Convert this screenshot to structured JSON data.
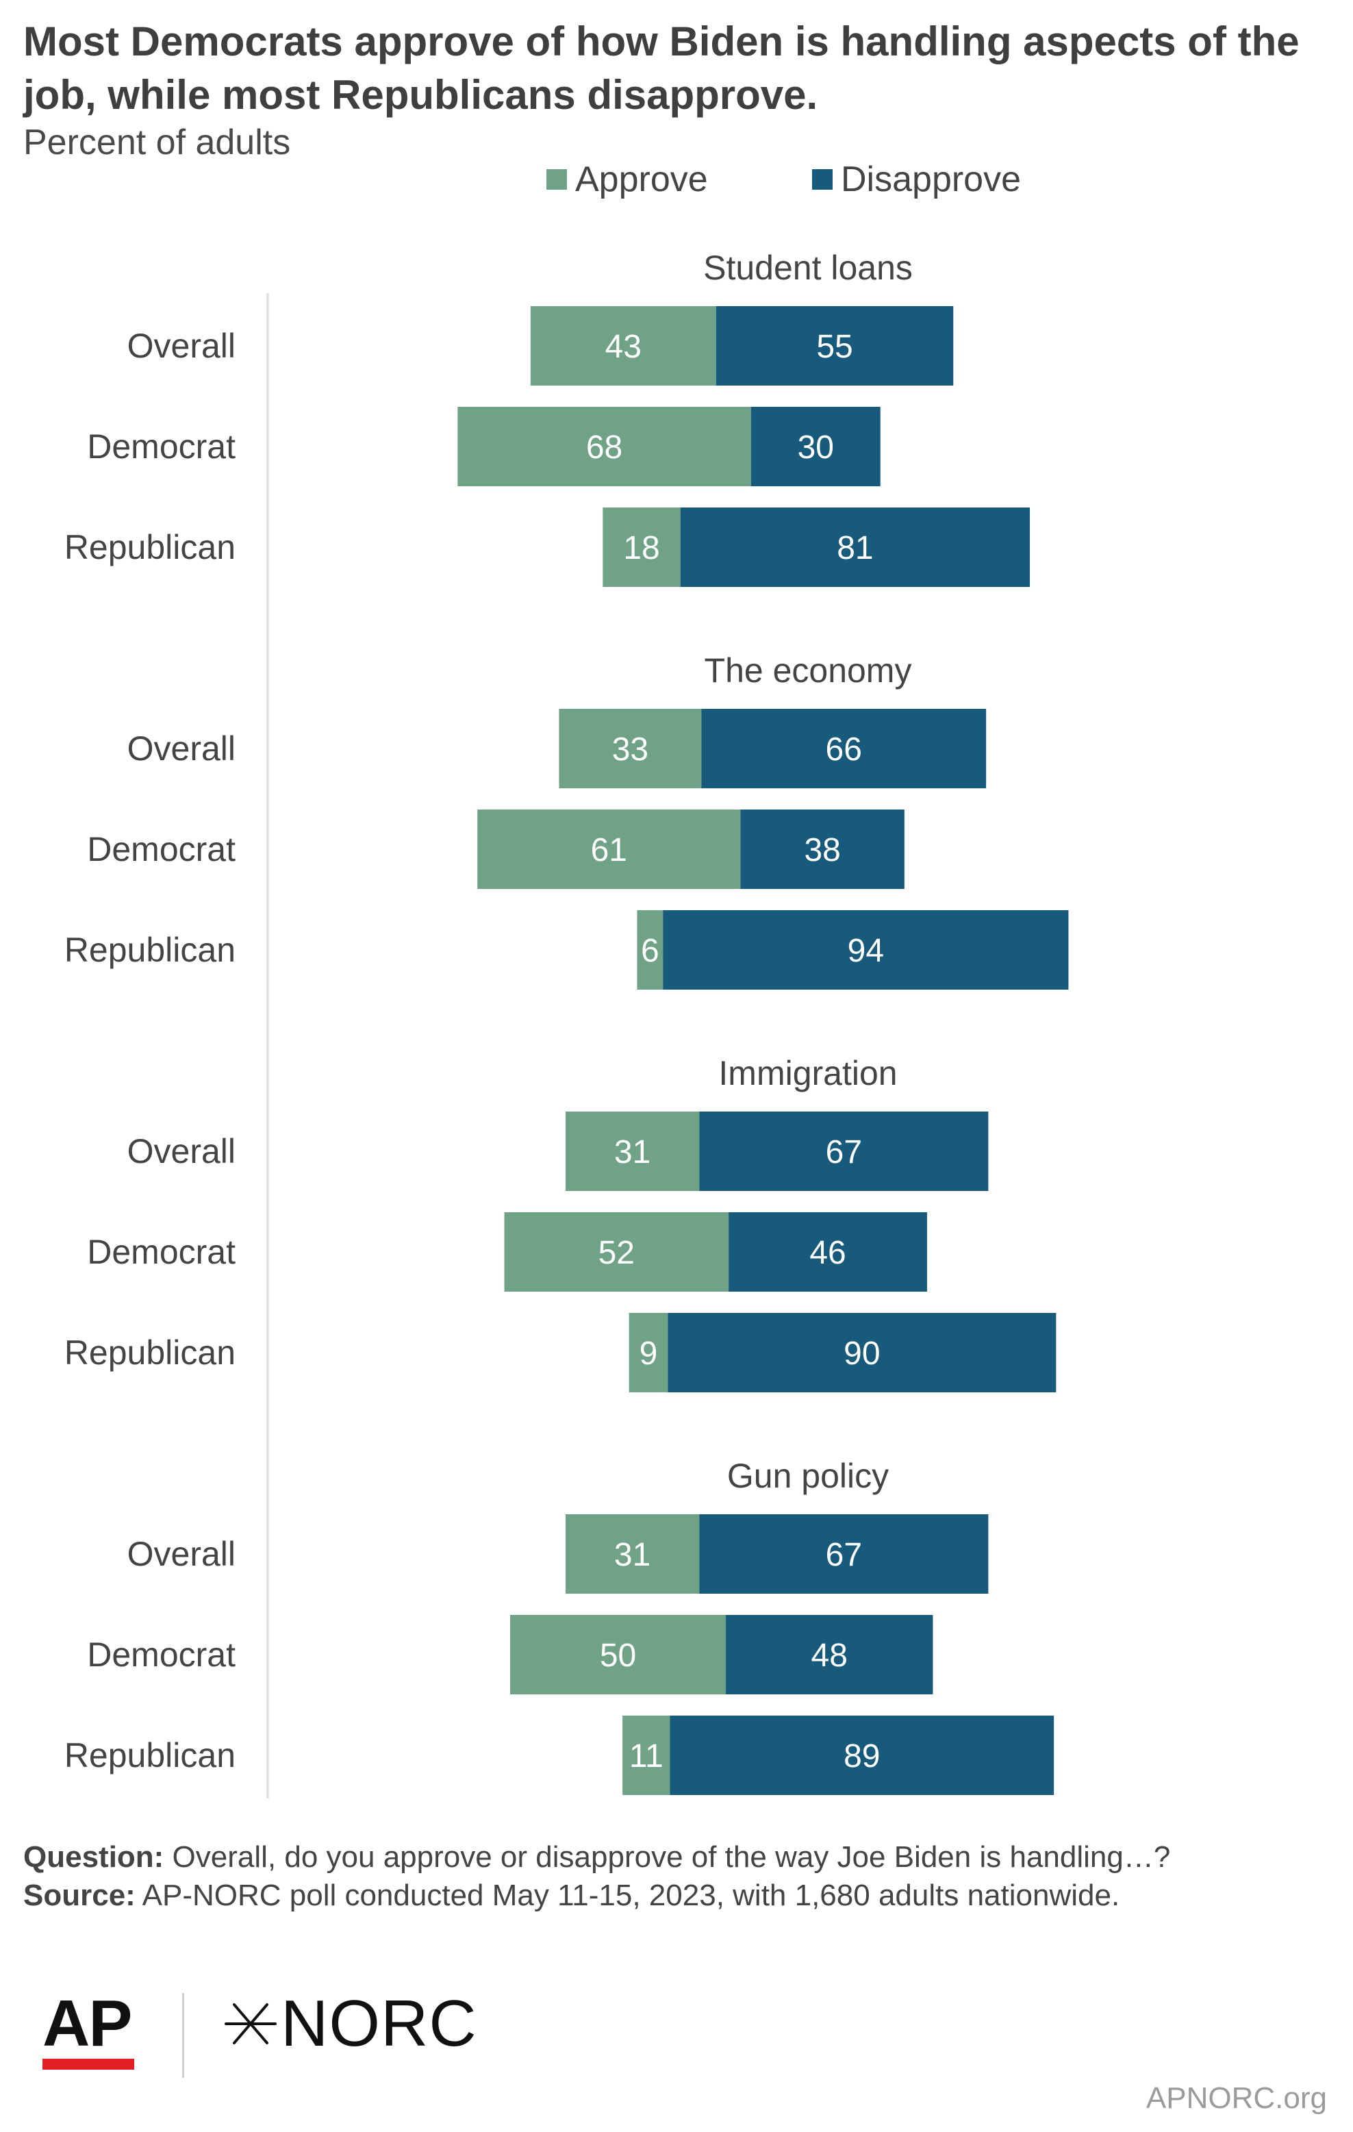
{
  "chart_data": {
    "type": "bar",
    "orientation": "horizontal",
    "stacked": true,
    "title": "Most Democrats approve of how Biden is handling aspects of the job, while most Republicans disapprove.",
    "subtitle": "Percent of adults",
    "legend": [
      {
        "name": "Approve",
        "color": "#6fa287"
      },
      {
        "name": "Disapprove",
        "color": "#175a7b"
      }
    ],
    "legend_position": "top",
    "categories": [
      "Overall",
      "Democrat",
      "Republican"
    ],
    "groups": [
      {
        "name": "Student loans",
        "rows": [
          {
            "label": "Overall",
            "approve": 43,
            "disapprove": 55
          },
          {
            "label": "Democrat",
            "approve": 68,
            "disapprove": 30
          },
          {
            "label": "Republican",
            "approve": 18,
            "disapprove": 81
          }
        ]
      },
      {
        "name": "The economy",
        "rows": [
          {
            "label": "Overall",
            "approve": 33,
            "disapprove": 66
          },
          {
            "label": "Democrat",
            "approve": 61,
            "disapprove": 38
          },
          {
            "label": "Republican",
            "approve": 6,
            "disapprove": 94
          }
        ]
      },
      {
        "name": "Immigration",
        "rows": [
          {
            "label": "Overall",
            "approve": 31,
            "disapprove": 67
          },
          {
            "label": "Democrat",
            "approve": 52,
            "disapprove": 46
          },
          {
            "label": "Republican",
            "approve": 9,
            "disapprove": 90
          }
        ]
      },
      {
        "name": "Gun policy",
        "rows": [
          {
            "label": "Overall",
            "approve": 31,
            "disapprove": 67
          },
          {
            "label": "Democrat",
            "approve": 50,
            "disapprove": 48
          },
          {
            "label": "Republican",
            "approve": 11,
            "disapprove": 89
          }
        ]
      }
    ],
    "grid": false
  },
  "notes": {
    "question_label": "Question:",
    "question_text": " Overall, do you approve or disapprove of the way Joe Biden is handling…?",
    "source_label": "Source:",
    "source_text": " AP-NORC poll conducted May 11-15, 2023, with 1,680 adults nationwide."
  },
  "logos": {
    "ap": "AP",
    "norc": "NORC",
    "site": "APNORC.org"
  }
}
